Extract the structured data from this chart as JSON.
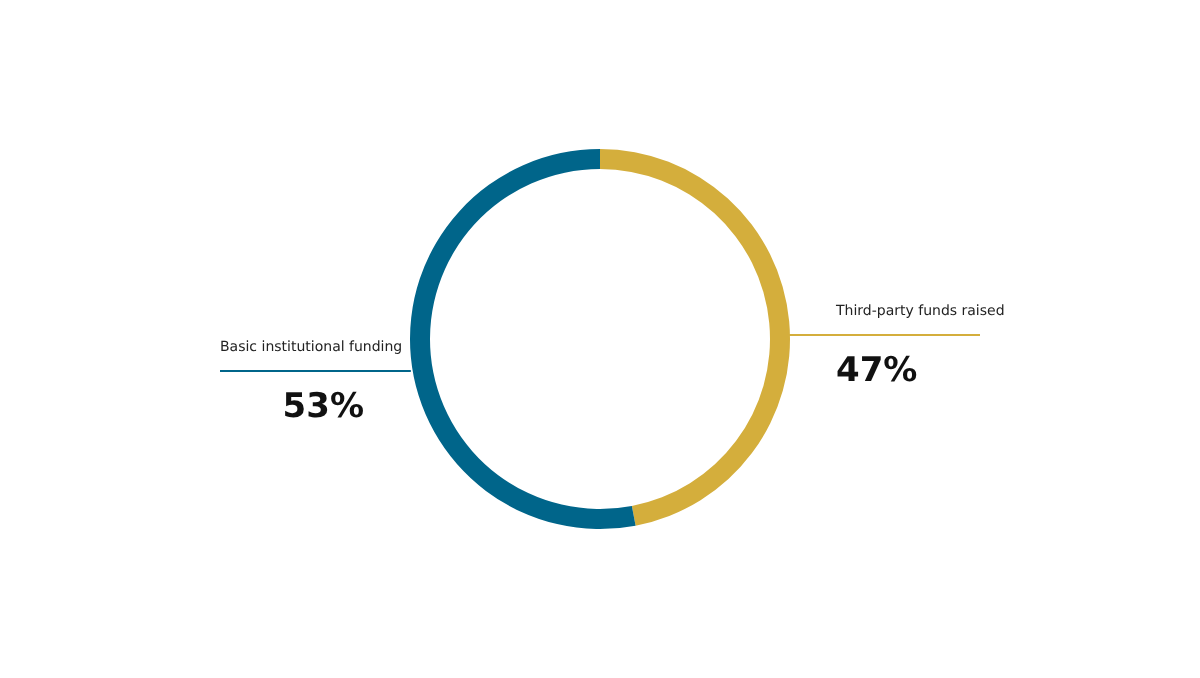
{
  "chart_data": {
    "type": "donut",
    "categories": [
      "Third-party funds raised",
      "Basic institutional funding"
    ],
    "values": [
      47,
      53
    ],
    "colors": [
      "#d4ae3c",
      "#00658a"
    ],
    "value_labels": [
      "47%",
      "53%"
    ]
  }
}
